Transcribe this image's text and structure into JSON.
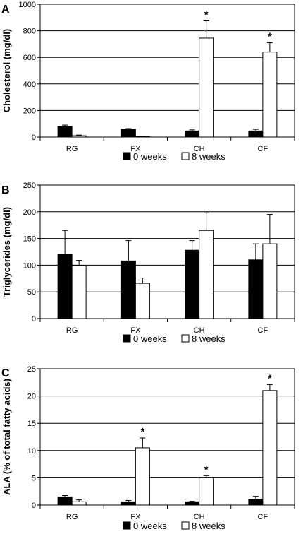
{
  "chart_data": [
    {
      "type": "bar",
      "panel_label": "A",
      "ylabel": "Cholesterol (mg/dl)",
      "categories": [
        "RG",
        "FX",
        "CH",
        "CF"
      ],
      "ylim": [
        0,
        1000
      ],
      "yticks": [
        0,
        200,
        400,
        600,
        800,
        1000
      ],
      "grid": true,
      "legend_position": "bottom",
      "series": [
        {
          "name": "0 weeks",
          "fill": "#000000",
          "values": [
            80,
            58,
            46,
            46
          ],
          "errors": [
            10,
            6,
            8,
            12
          ]
        },
        {
          "name": "8 weeks",
          "fill": "#ffffff",
          "values": [
            10,
            5,
            745,
            640
          ],
          "errors": [
            5,
            2,
            130,
            70
          ]
        }
      ],
      "annotations": [
        {
          "text": "*",
          "category": "CH",
          "series": 1
        },
        {
          "text": "*",
          "category": "CF",
          "series": 1
        }
      ]
    },
    {
      "type": "bar",
      "panel_label": "B",
      "ylabel": "Triglycerides (mg/dl)",
      "categories": [
        "RG",
        "FX",
        "CH",
        "CF"
      ],
      "ylim": [
        0,
        250
      ],
      "yticks": [
        0,
        50,
        100,
        150,
        200,
        250
      ],
      "grid": true,
      "legend_position": "bottom",
      "series": [
        {
          "name": "0 weeks",
          "fill": "#000000",
          "values": [
            120,
            108,
            128,
            110
          ],
          "errors": [
            45,
            38,
            18,
            30
          ]
        },
        {
          "name": "8 weeks",
          "fill": "#ffffff",
          "values": [
            99,
            66,
            165,
            140
          ],
          "errors": [
            10,
            10,
            33,
            55
          ]
        }
      ],
      "annotations": []
    },
    {
      "type": "bar",
      "panel_label": "C",
      "ylabel": "ALA (% of total fatty acids)",
      "categories": [
        "RG",
        "FX",
        "CH",
        "CF"
      ],
      "ylim": [
        0,
        25
      ],
      "yticks": [
        0,
        5,
        10,
        15,
        20,
        25
      ],
      "grid": true,
      "legend_position": "bottom",
      "series": [
        {
          "name": "0 weeks",
          "fill": "#000000",
          "values": [
            1.5,
            0.6,
            0.6,
            1.1
          ],
          "errors": [
            0.25,
            0.25,
            0.1,
            0.5
          ]
        },
        {
          "name": "8 weeks",
          "fill": "#ffffff",
          "values": [
            0.6,
            10.5,
            5.0,
            21.0
          ],
          "errors": [
            0.35,
            1.8,
            0.4,
            1.1
          ]
        }
      ],
      "annotations": [
        {
          "text": "*",
          "category": "FX",
          "series": 1
        },
        {
          "text": "*",
          "category": "CH",
          "series": 1
        },
        {
          "text": "*",
          "category": "CF",
          "series": 1
        }
      ]
    }
  ]
}
